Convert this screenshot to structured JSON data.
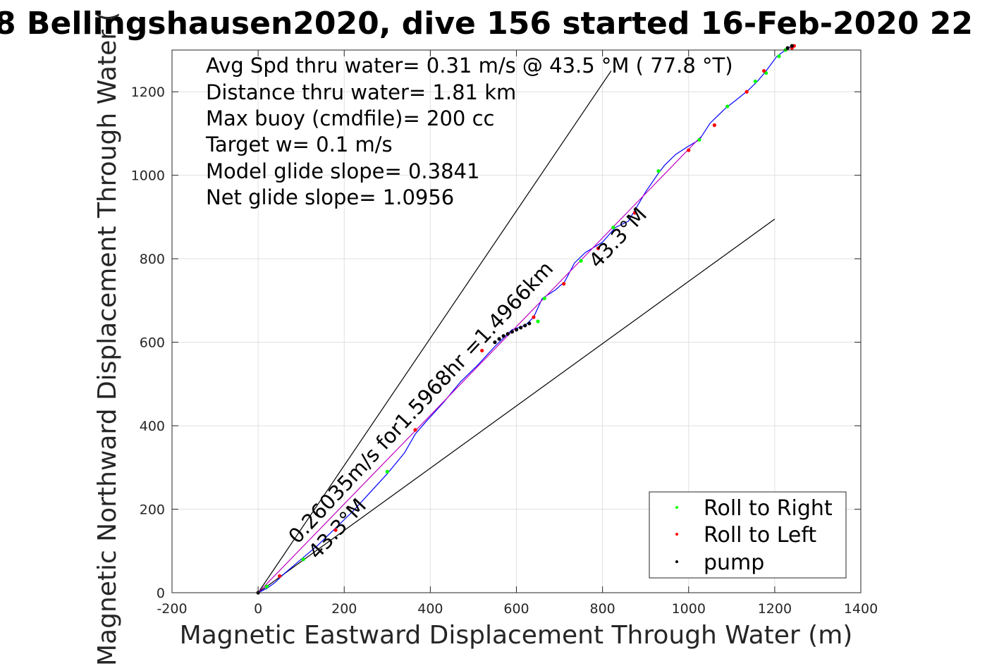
{
  "chart_data": {
    "type": "line",
    "title": "8 Bellingshausen2020, dive 156 started 16-Feb-2020 22",
    "xlabel": "Magnetic Eastward Displacement Through Water (m)",
    "ylabel": "Magnetic Northward Displacement Through Water (",
    "xlim": [
      -200,
      1400
    ],
    "ylim": [
      0,
      1300
    ],
    "x_ticks": [
      -200,
      0,
      200,
      400,
      600,
      800,
      1000,
      1200,
      1400
    ],
    "y_ticks": [
      0,
      200,
      400,
      600,
      800,
      1000,
      1200
    ],
    "x_tick_labels": [
      "-200",
      "0",
      "200",
      "400",
      "600",
      "800",
      "1000",
      "1200",
      "1400"
    ],
    "y_tick_labels": [
      "0",
      "200",
      "400",
      "600",
      "800",
      "1000",
      "1200"
    ],
    "grid": true,
    "legend_position": "bottom-right",
    "info_lines": [
      "Avg Spd thru water=  0.31 m/s @  43.5 °M ( 77.8 °T)",
      "Distance thru water=  1.81 km",
      "Max buoy (cmdfile)= 200 cc",
      "Target w= 0.1 m/s",
      "Model glide slope= 0.3841",
      "Net glide slope= 1.0956"
    ],
    "annotations": {
      "speed_text": "0.26035m/s for1.5968hr =1.4966km",
      "heading_upper": "43.3°M",
      "heading_lower": "43.3°M"
    },
    "legend": [
      {
        "label": "Roll to Right",
        "color": "#00ff00"
      },
      {
        "label": "Roll to Left",
        "color": "#ff0000"
      },
      {
        "label": "pump",
        "color": "#000000"
      }
    ],
    "guide_lines": [
      {
        "name": "upper-envelope",
        "x": [
          0,
          820
        ],
        "y": [
          0,
          1250
        ],
        "color": "#000000"
      },
      {
        "name": "lower-envelope",
        "x": [
          0,
          1200
        ],
        "y": [
          0,
          895
        ],
        "color": "#000000"
      }
    ],
    "series": [
      {
        "name": "track",
        "color": "#0000ff",
        "x": [
          0,
          20,
          40,
          60,
          100,
          140,
          180,
          220,
          260,
          300,
          340,
          365,
          390,
          430,
          470,
          510,
          550,
          590,
          620,
          640,
          660,
          690,
          712,
          735,
          760,
          800,
          830,
          860,
          900,
          930,
          945,
          970,
          1000,
          1025,
          1050,
          1085,
          1110,
          1140,
          1160,
          1180,
          1205,
          1225,
          1240
        ],
        "y": [
          0,
          10,
          25,
          45,
          80,
          115,
          155,
          195,
          240,
          285,
          335,
          380,
          410,
          455,
          505,
          545,
          590,
          630,
          640,
          660,
          705,
          725,
          745,
          790,
          815,
          840,
          875,
          890,
          960,
          1005,
          1025,
          1050,
          1070,
          1085,
          1125,
          1160,
          1180,
          1205,
          1225,
          1250,
          1285,
          1300,
          1310
        ]
      },
      {
        "name": "average-fit",
        "color": "#c000c0",
        "x": [
          0,
          1028
        ],
        "y": [
          0,
          1092
        ]
      }
    ],
    "roll_right_points": {
      "x": [
        20,
        105,
        300,
        650,
        665,
        750,
        825,
        930,
        1025,
        1090,
        1155,
        1180,
        1210,
        1225
      ],
      "y": [
        15,
        80,
        290,
        650,
        705,
        795,
        875,
        1010,
        1085,
        1165,
        1225,
        1245,
        1285,
        1300
      ]
    },
    "roll_left_points": {
      "x": [
        50,
        180,
        365,
        520,
        640,
        710,
        790,
        875,
        1000,
        1060,
        1135,
        1175,
        1240,
        1245
      ],
      "y": [
        40,
        150,
        390,
        580,
        660,
        740,
        825,
        910,
        1060,
        1120,
        1200,
        1250,
        1305,
        1310
      ]
    },
    "pump_points": {
      "x": [
        0,
        550,
        560,
        570,
        580,
        590,
        600,
        610,
        620,
        630,
        1230,
        1240
      ],
      "y": [
        0,
        600,
        608,
        615,
        620,
        625,
        630,
        635,
        640,
        645,
        1305,
        1310
      ]
    }
  }
}
